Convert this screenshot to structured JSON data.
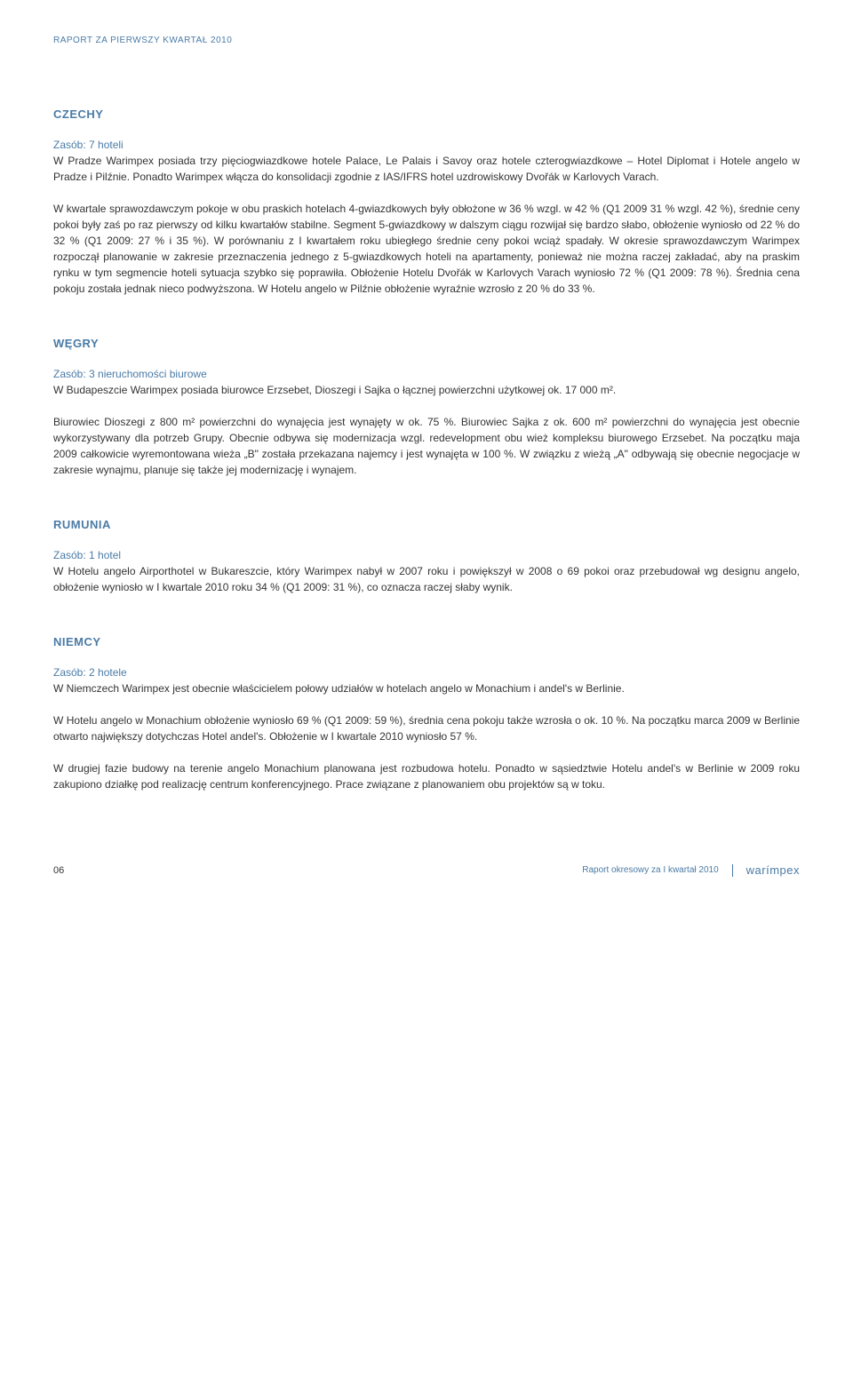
{
  "header": "RAPORT ZA PIERWSZY KWARTAŁ 2010",
  "sections": {
    "czechy": {
      "title": "CZECHY",
      "subtitle": "Zasób: 7 hoteli",
      "para1": "W Pradze Warimpex posiada trzy pięciogwiazdkowe hotele Palace, Le Palais i Savoy oraz hotele czterogwiazdkowe – Hotel Diplomat i Hotele angelo w Pradze i Pilźnie. Ponadto Warimpex włącza do konsolidacji zgodnie z IAS/IFRS hotel uzdrowiskowy Dvořák w Karlovych Varach.",
      "para2": "W kwartale sprawozdawczym pokoje w obu praskich hotelach 4-gwiazdkowych były obłożone w 36 % wzgl. w 42 % (Q1 2009 31 % wzgl. 42 %), średnie ceny pokoi były zaś po raz pierwszy od kilku kwartałów stabilne. Segment 5-gwiazdkowy w dalszym ciągu rozwijał się bardzo słabo, obłożenie wyniosło od 22 % do 32 % (Q1 2009: 27 % i 35 %). W porównaniu z I kwartałem roku ubiegłego średnie ceny pokoi wciąż spadały. W okresie sprawozdawczym Warimpex rozpoczął planowanie w zakresie przeznaczenia jednego z 5-gwiazdkowych hoteli na apartamenty, ponieważ nie można raczej zakładać, aby na praskim rynku w tym segmencie hoteli sytuacja szybko się poprawiła. Obłożenie Hotelu Dvořák w Karlovych Varach wyniosło 72 % (Q1 2009: 78 %). Średnia cena pokoju została jednak nieco podwyższona. W Hotelu angelo w Pilźnie obłożenie wyraźnie wzrosło z 20 % do 33 %."
    },
    "wegry": {
      "title": "WĘGRY",
      "subtitle": "Zasób: 3 nieruchomości biurowe",
      "para1": "W Budapeszcie Warimpex posiada biurowce Erzsebet, Dioszegi i Sajka o łącznej powierzchni użytkowej ok. 17 000 m².",
      "para2": "Biurowiec Dioszegi z 800 m² powierzchni do wynajęcia jest wynajęty w ok. 75 %. Biurowiec Sajka z ok. 600 m² powierzchni do wynajęcia jest obecnie wykorzystywany dla potrzeb Grupy. Obecnie odbywa się modernizacja wzgl. redevelopment obu wież kompleksu biurowego Erzsebet. Na początku maja 2009 całkowicie wyremontowana wieża „B\" została przekazana najemcy i jest wynajęta w 100 %. W związku z wieżą „A\" odbywają się obecnie negocjacje w zakresie wynajmu, planuje się także jej modernizację i wynajem."
    },
    "rumunia": {
      "title": "RUMUNIA",
      "subtitle": "Zasób: 1 hotel",
      "para1": "W Hotelu angelo Airporthotel w Bukareszcie, który Warimpex nabył w 2007 roku i powiększył w 2008 o 69 pokoi oraz przebudował wg designu angelo, obłożenie wyniosło w I kwartale 2010 roku 34 % (Q1 2009: 31 %), co oznacza raczej słaby wynik."
    },
    "niemcy": {
      "title": "NIEMCY",
      "subtitle": "Zasób: 2 hotele",
      "para1": "W Niemczech Warimpex jest obecnie właścicielem połowy udziałów w hotelach angelo w Monachium i andel's w Berlinie.",
      "para2": "W Hotelu angelo w Monachium obłożenie wyniosło 69 % (Q1 2009: 59 %), średnia cena pokoju także wzrosła o ok. 10 %. Na początku marca 2009 w Berlinie otwarto największy dotychczas Hotel andel's. Obłożenie w I kwartale 2010 wyniosło 57 %.",
      "para3": "W drugiej fazie budowy na terenie angelo Monachium planowana jest rozbudowa hotelu. Ponadto w sąsiedztwie Hotelu andel's w Berlinie w 2009 roku zakupiono działkę pod realizację centrum konferencyjnego. Prace związane z planowaniem obu projektów są w toku."
    }
  },
  "footer": {
    "pageNumber": "06",
    "reportText": "Raport okresowy za I kwartał 2010",
    "logo": "warímpex"
  }
}
